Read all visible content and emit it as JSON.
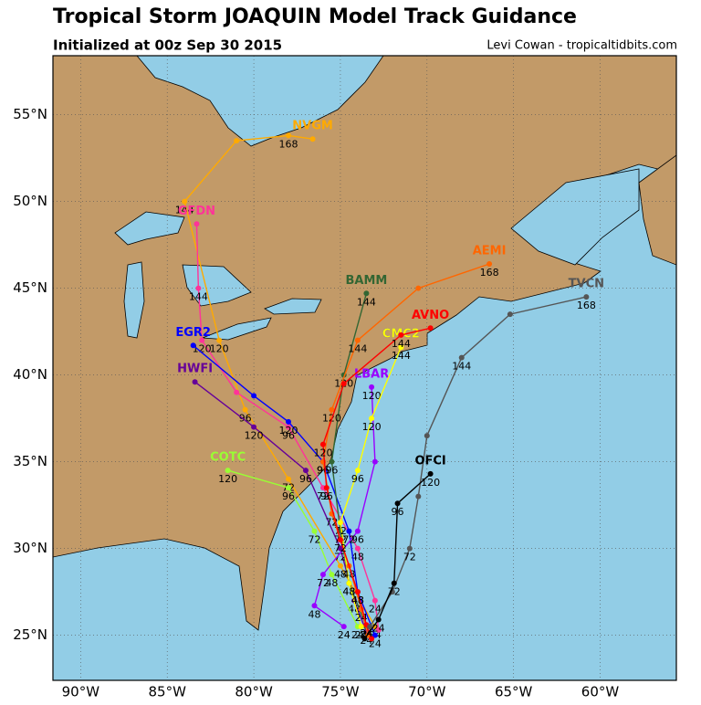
{
  "map": {
    "title": "Tropical Storm JOAQUIN Model Track Guidance",
    "subtitle": "Initialized at 00z Sep 30 2015",
    "credit": "Levi Cowan - tropicaltidbits.com",
    "lonlim": [
      -91.6,
      -55.6
    ],
    "latlim": [
      22.4,
      58.4
    ],
    "lonticks": [
      {
        "value": -90,
        "label": "90°W"
      },
      {
        "value": -85,
        "label": "85°W"
      },
      {
        "value": -80,
        "label": "80°W"
      },
      {
        "value": -75,
        "label": "75°W"
      },
      {
        "value": -70,
        "label": "70°W"
      },
      {
        "value": -65,
        "label": "65°W"
      },
      {
        "value": -60,
        "label": "60°W"
      }
    ],
    "latticks": [
      {
        "value": 25,
        "label": "25°N"
      },
      {
        "value": 30,
        "label": "30°N"
      },
      {
        "value": 35,
        "label": "35°N"
      },
      {
        "value": 40,
        "label": "40°N"
      },
      {
        "value": 45,
        "label": "45°N"
      },
      {
        "value": 50,
        "label": "50°N"
      },
      {
        "value": 55,
        "label": "55°N"
      }
    ],
    "tracks": [
      {
        "name": "NVGM",
        "color": "#ffaa00",
        "lon": [
          -73.0,
          -75.0,
          -78.0,
          -80.5,
          -82.0,
          -84.0,
          -81.0,
          -78.0,
          -76.6
        ],
        "lat": [
          25.5,
          29.0,
          34.0,
          38.0,
          42.0,
          50.0,
          53.5,
          53.8,
          53.6
        ],
        "hours": [
          24,
          48,
          72,
          96,
          120,
          144,
          null,
          168,
          null
        ]
      },
      {
        "name": "GFDN",
        "color": "#ff3399",
        "lon": [
          -72.8,
          -73.0,
          -74.0,
          -76.0,
          -78.0,
          -81.0,
          -83.0,
          -83.2,
          -83.3
        ],
        "lat": [
          25.3,
          27.0,
          30.0,
          33.5,
          37.0,
          39.0,
          42.0,
          45.0,
          48.7
        ],
        "hours": [
          null,
          24,
          48,
          72,
          96,
          null,
          120,
          144,
          null
        ]
      },
      {
        "name": "EGR2",
        "color": "#0000ff",
        "lon": [
          -73.0,
          -74.0,
          -74.5,
          -76.0,
          -78.0,
          -80.0,
          -83.5
        ],
        "lat": [
          25.0,
          27.5,
          31.0,
          35.0,
          37.3,
          38.8,
          41.7
        ],
        "hours": [
          24,
          48,
          72,
          96,
          120,
          null,
          null
        ]
      },
      {
        "name": "HWFI",
        "color": "#660099",
        "lon": [
          -73.5,
          -74.2,
          -75.0,
          -77.0,
          -80.0,
          -83.4
        ],
        "lat": [
          25.2,
          27.0,
          30.0,
          34.5,
          37.0,
          39.6
        ],
        "hours": [
          24,
          48,
          72,
          96,
          120,
          null
        ]
      },
      {
        "name": "COTC",
        "color": "#99ff33",
        "lon": [
          -74.0,
          -75.5,
          -76.5,
          -78.0,
          -81.5
        ],
        "lat": [
          25.5,
          28.5,
          31.0,
          33.5,
          34.5
        ],
        "hours": [
          24,
          48,
          72,
          96,
          120
        ]
      },
      {
        "name": "LBAR",
        "color": "#9900ff",
        "lon": [
          -74.8,
          -76.5,
          -76.0,
          -74.0,
          -73.0,
          -73.2
        ],
        "lat": [
          25.5,
          26.7,
          28.5,
          31.0,
          35.0,
          39.3
        ],
        "hours": [
          24,
          48,
          72,
          96,
          null,
          120
        ]
      },
      {
        "name": "BAMM",
        "color": "#336633",
        "lon": [
          -73.5,
          -74.5,
          -75.0,
          -75.5,
          -74.8,
          -73.5
        ],
        "lat": [
          25.5,
          28.0,
          31.0,
          35.0,
          40.0,
          44.7
        ],
        "hours": [
          24,
          48,
          72,
          96,
          120,
          144
        ]
      },
      {
        "name": "CMC2",
        "color": "#ffff00",
        "lon": [
          -73.8,
          -74.5,
          -75.0,
          -74.0,
          -73.2,
          -71.5
        ],
        "lat": [
          25.5,
          28.0,
          31.5,
          34.5,
          37.5,
          41.6
        ],
        "hours": [
          24,
          48,
          72,
          96,
          120,
          144
        ]
      },
      {
        "name": "AEMI",
        "color": "#ff6600",
        "lon": [
          -73.4,
          -73.8,
          -74.5,
          -75.5,
          -76.0,
          -75.5,
          -74.0,
          -70.5,
          -66.4
        ],
        "lat": [
          25.0,
          26.5,
          29.0,
          32.0,
          35.0,
          38.0,
          42.0,
          45.0,
          46.4
        ],
        "hours": [
          null,
          24,
          48,
          72,
          96,
          120,
          144,
          null,
          168
        ]
      },
      {
        "name": "AVNO",
        "color": "#ff0000",
        "lon": [
          -73.2,
          -73.5,
          -74.0,
          -75.0,
          -75.8,
          -76.0,
          -74.8,
          -71.5,
          -69.8
        ],
        "lat": [
          24.8,
          25.6,
          27.5,
          30.5,
          33.5,
          36.0,
          39.5,
          42.3,
          42.7
        ],
        "hours": [
          null,
          24,
          48,
          72,
          96,
          120,
          null,
          144,
          null
        ]
      },
      {
        "name": "TVCN",
        "color": "#555555",
        "lon": [
          -73.3,
          -72.0,
          -71.0,
          -70.5,
          -70.0,
          -68.0,
          -65.2,
          -60.8
        ],
        "lat": [
          25.5,
          27.5,
          30.0,
          33.0,
          36.5,
          41.0,
          43.5,
          44.5
        ],
        "hours": [
          null,
          null,
          72,
          null,
          null,
          144,
          null,
          168
        ]
      },
      {
        "name": "OFCI",
        "color": "#000000",
        "lon": [
          -73.6,
          -72.8,
          -71.9,
          -71.7,
          -69.8
        ],
        "lat": [
          24.8,
          25.9,
          28.0,
          32.6,
          34.3
        ],
        "hours": [
          null,
          24,
          72,
          96,
          120
        ]
      }
    ]
  }
}
